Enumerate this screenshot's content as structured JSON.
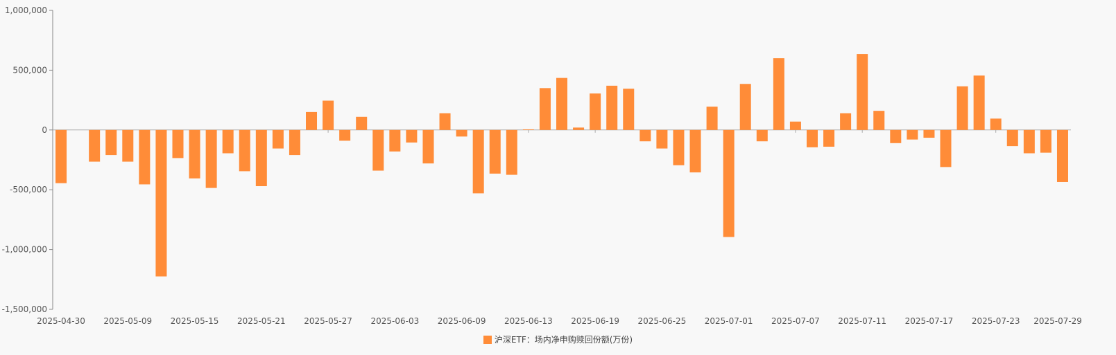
{
  "chart_data": {
    "type": "bar",
    "legend": {
      "position": "bottom"
    },
    "ylim": [
      -1500000,
      1000000
    ],
    "yticks": [
      {
        "value": 1000000,
        "label": "1,000,000"
      },
      {
        "value": 500000,
        "label": "500,000"
      },
      {
        "value": 0,
        "label": "0"
      },
      {
        "value": -500000,
        "label": "-500,000"
      },
      {
        "value": -1000000,
        "label": "-1,000,000"
      },
      {
        "value": -1500000,
        "label": "-1,500,000"
      }
    ],
    "xtick_labels": [
      "2025-04-30",
      "2025-05-09",
      "2025-05-15",
      "2025-05-21",
      "2025-05-27",
      "2025-06-03",
      "2025-06-09",
      "2025-06-13",
      "2025-06-19",
      "2025-06-25",
      "2025-07-01",
      "2025-07-07",
      "2025-07-11",
      "2025-07-17",
      "2025-07-23",
      "2025-07-29"
    ],
    "categories": [
      "2025-04-30",
      "2025-05-06",
      "2025-05-07",
      "2025-05-08",
      "2025-05-09",
      "2025-05-12",
      "2025-05-13",
      "2025-05-14",
      "2025-05-15",
      "2025-05-16",
      "2025-05-19",
      "2025-05-20",
      "2025-05-21",
      "2025-05-22",
      "2025-05-23",
      "2025-05-26",
      "2025-05-27",
      "2025-05-28",
      "2025-05-29",
      "2025-05-30",
      "2025-06-03",
      "2025-06-04",
      "2025-06-05",
      "2025-06-06",
      "2025-06-09",
      "2025-06-10",
      "2025-06-11",
      "2025-06-12",
      "2025-06-13",
      "2025-06-16",
      "2025-06-17",
      "2025-06-18",
      "2025-06-19",
      "2025-06-20",
      "2025-06-23",
      "2025-06-24",
      "2025-06-25",
      "2025-06-26",
      "2025-06-27",
      "2025-06-30",
      "2025-07-01",
      "2025-07-02",
      "2025-07-03",
      "2025-07-04",
      "2025-07-07",
      "2025-07-08",
      "2025-07-09",
      "2025-07-10",
      "2025-07-11",
      "2025-07-14",
      "2025-07-15",
      "2025-07-16",
      "2025-07-17",
      "2025-07-18",
      "2025-07-21",
      "2025-07-22",
      "2025-07-23",
      "2025-07-24",
      "2025-07-25",
      "2025-07-28",
      "2025-07-29"
    ],
    "series": [
      {
        "name": "沪深ETF：场内净申购赎回份额(万份)",
        "color": "#ff8c38",
        "values": [
          -445000,
          null,
          -265000,
          -210000,
          -265000,
          -455000,
          -1225000,
          -235000,
          -405000,
          -485000,
          -195000,
          -345000,
          -470000,
          -155000,
          -210000,
          150000,
          245000,
          -90000,
          110000,
          -340000,
          -180000,
          -105000,
          -280000,
          140000,
          -55000,
          -530000,
          -365000,
          -375000,
          5000,
          350000,
          435000,
          20000,
          305000,
          370000,
          345000,
          -95000,
          -155000,
          -295000,
          -355000,
          195000,
          -895000,
          385000,
          -95000,
          600000,
          70000,
          -145000,
          -140000,
          140000,
          635000,
          160000,
          -110000,
          -80000,
          -65000,
          -310000,
          365000,
          455000,
          95000,
          -135000,
          -195000,
          -190000,
          -435000
        ]
      }
    ]
  }
}
